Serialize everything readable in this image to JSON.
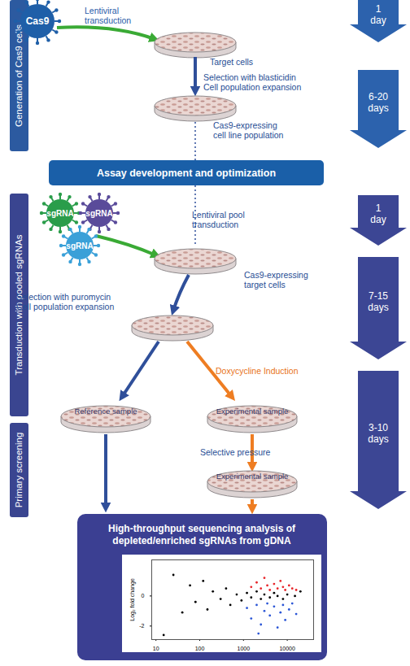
{
  "sections": [
    "Generation of Cas9 cells",
    "Transduction with pooled sgRNAs",
    "Primary screening"
  ],
  "durations": [
    "1 day",
    "6-20 days",
    "1 day",
    "7-15 days",
    "3-10 days"
  ],
  "virus_labels": [
    "Cas9",
    "sgRNA",
    "sgRNA",
    "sgRNA"
  ],
  "labels": {
    "lentiviral": [
      "Lentiviral",
      "transduction"
    ],
    "target_cells": [
      "Target cells"
    ],
    "blasticidin": [
      "Selection with blasticidin",
      "Cell population expansion"
    ],
    "cas9_population": [
      "Cas9-expressing",
      "cell line population"
    ],
    "banner": [
      "Assay development and optimization"
    ],
    "pool": [
      "Lentiviral pool",
      "transduction"
    ],
    "cas9_targets": [
      "Cas9-expressing",
      "target cells"
    ],
    "puromycin": [
      "Selection with puromycin",
      "Cell population expansion"
    ],
    "doxycycline": [
      "Doxycycline Induction"
    ],
    "reference": [
      "Reference sample"
    ],
    "experimental": [
      "Experimental sample"
    ],
    "selective": [
      "Selective pressure"
    ],
    "experimental2": [
      "Experimental sample"
    ],
    "sequencing": [
      "High-throughput sequencing analysis of",
      "depleted/enriched sgRNAs from gDNA"
    ]
  },
  "chart_data": {
    "type": "scatter",
    "y_label": "Log₂ fold change",
    "log": "x",
    "grid": false,
    "xlim": [
      8,
      40000
    ],
    "xticks": [
      10,
      100,
      1000,
      10000
    ],
    "ylim": [
      -2.9,
      2.4
    ],
    "yticks": [
      -2,
      0
    ],
    "x": [
      15,
      25,
      40,
      60,
      80,
      120,
      150,
      200,
      300,
      400,
      500,
      700,
      900,
      1200,
      1500,
      2000,
      2500,
      3000,
      4000,
      5000,
      6000,
      8000,
      10000,
      15000,
      20000,
      1500,
      2000,
      2500,
      3000,
      3500,
      4000,
      5000,
      6000,
      7000,
      8000,
      9000,
      11000,
      13000,
      16000,
      1200,
      1500,
      2000,
      2500,
      3000,
      3500,
      4000,
      5000,
      6000,
      7000,
      8000,
      9000,
      11000,
      13000,
      16000,
      2200
    ],
    "values": [
      -2.6,
      1.4,
      -1.1,
      0.7,
      -0.4,
      1.0,
      -0.9,
      0.3,
      -0.2,
      0.5,
      -0.6,
      0.1,
      -0.3,
      0.2,
      -0.1,
      0.3,
      -0.2,
      0.1,
      -0.1,
      0.2,
      0.0,
      -0.2,
      0.1,
      0.0,
      0.3,
      0.6,
      0.9,
      0.5,
      1.2,
      0.7,
      0.4,
      0.8,
      0.5,
      1.0,
      0.6,
      0.4,
      0.7,
      0.5,
      0.4,
      -0.8,
      -1.5,
      -0.6,
      -1.9,
      -1.0,
      -0.5,
      -1.3,
      -0.7,
      -2.1,
      -1.1,
      -0.6,
      -1.6,
      -0.9,
      -0.5,
      -1.2,
      -2.5
    ],
    "colors": [
      "#000000",
      "#000000",
      "#000000",
      "#000000",
      "#000000",
      "#000000",
      "#000000",
      "#000000",
      "#000000",
      "#000000",
      "#000000",
      "#000000",
      "#000000",
      "#000000",
      "#000000",
      "#000000",
      "#000000",
      "#000000",
      "#000000",
      "#000000",
      "#000000",
      "#000000",
      "#000000",
      "#000000",
      "#000000",
      "#e8262b",
      "#e8262b",
      "#e8262b",
      "#e8262b",
      "#e8262b",
      "#e8262b",
      "#e8262b",
      "#e8262b",
      "#e8262b",
      "#e8262b",
      "#e8262b",
      "#e8262b",
      "#e8262b",
      "#e8262b",
      "#2a55d6",
      "#2a55d6",
      "#2a55d6",
      "#2a55d6",
      "#2a55d6",
      "#2a55d6",
      "#2a55d6",
      "#2a55d6",
      "#2a55d6",
      "#2a55d6",
      "#2a55d6",
      "#2a55d6",
      "#2a55d6",
      "#2a55d6",
      "#2a55d6",
      "#2a55d6"
    ]
  }
}
